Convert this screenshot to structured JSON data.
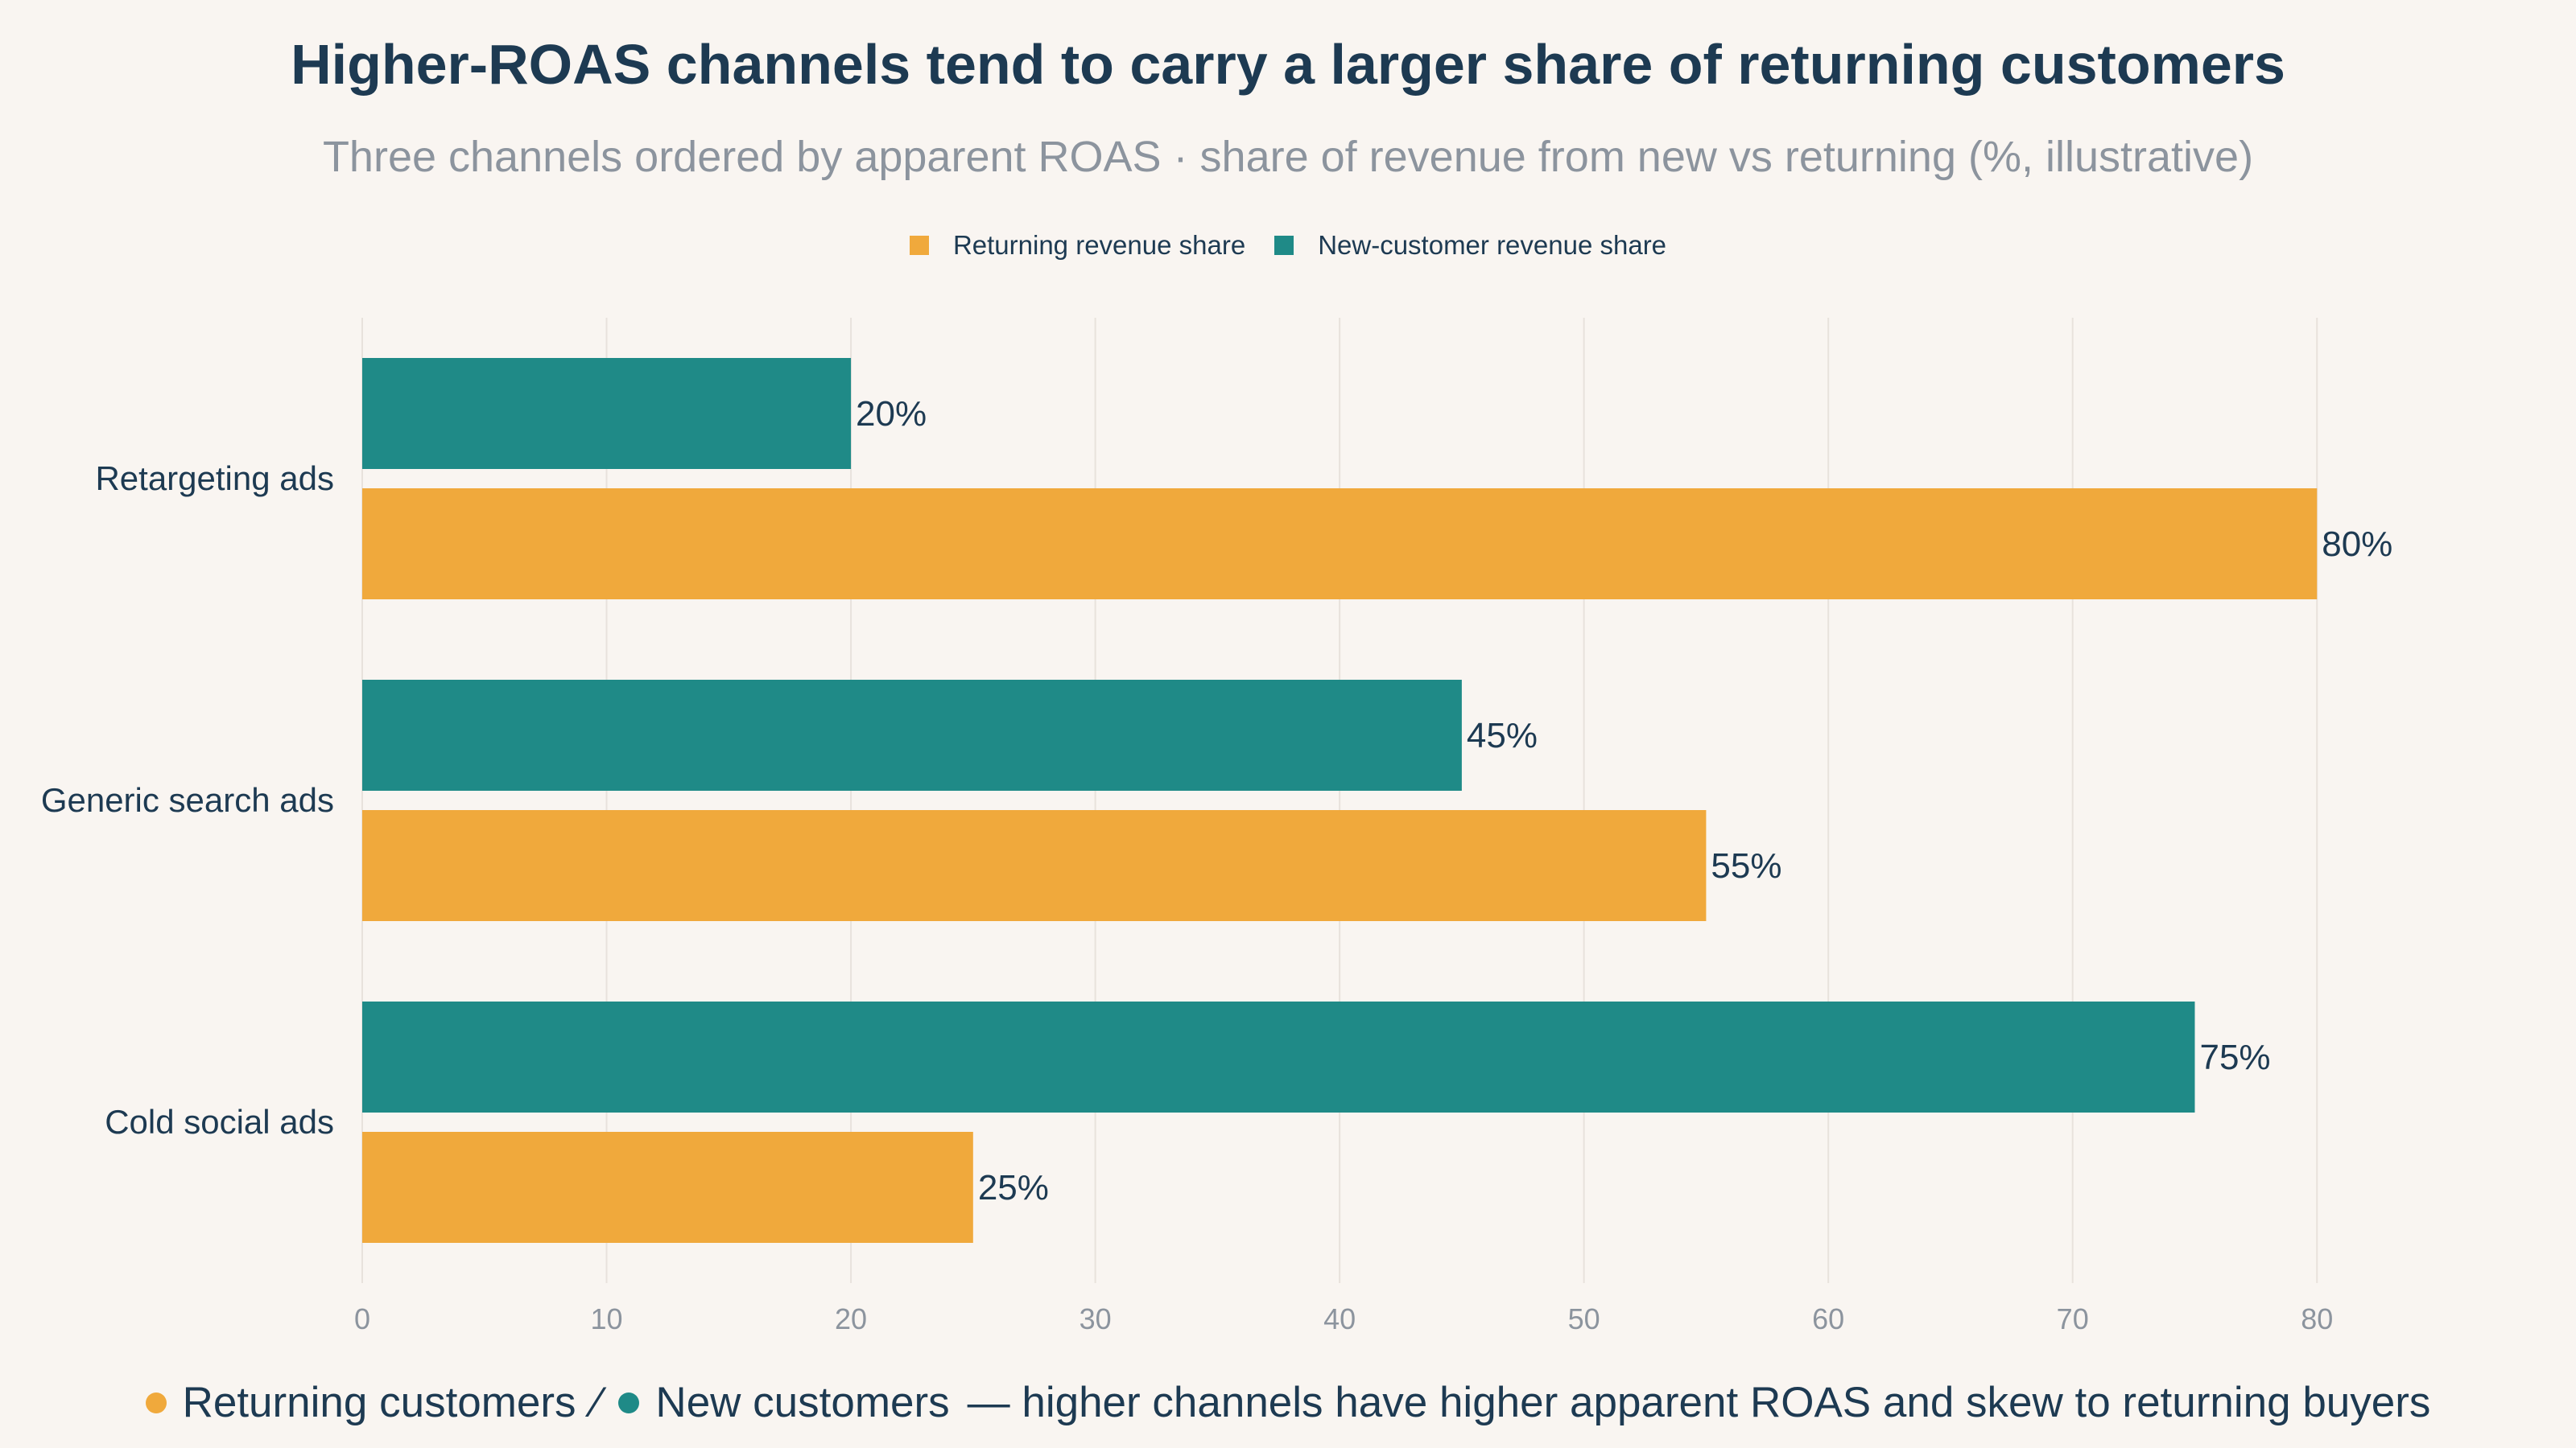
{
  "chart_data": {
    "type": "bar",
    "orientation": "horizontal",
    "title": "Higher-ROAS channels tend to carry a larger share of returning customers",
    "subtitle": "Three channels ordered by apparent ROAS · share of revenue from new vs returning (%, illustrative)",
    "categories": [
      "Retargeting ads",
      "Generic search ads",
      "Cold social ads"
    ],
    "series": [
      {
        "name": "Returning revenue share",
        "color": "#f0a93c",
        "values": [
          80,
          55,
          25
        ],
        "labels": [
          "80%",
          "55%",
          "25%"
        ]
      },
      {
        "name": "New-customer revenue share",
        "color": "#1f8a87",
        "values": [
          20,
          45,
          75
        ],
        "labels": [
          "20%",
          "45%",
          "75%"
        ]
      }
    ],
    "xlim": [
      0,
      85
    ],
    "xticks": [
      0,
      10,
      20,
      30,
      40,
      50,
      60,
      70,
      80
    ],
    "grid": true,
    "legend_position": "top-center"
  },
  "footer": {
    "returning_label": "Returning customers",
    "separator": "∕",
    "new_label": "New customers",
    "note": "— higher channels have higher apparent ROAS and skew to returning buyers",
    "returning_color": "#f0a93c",
    "new_color": "#1f8a87"
  }
}
